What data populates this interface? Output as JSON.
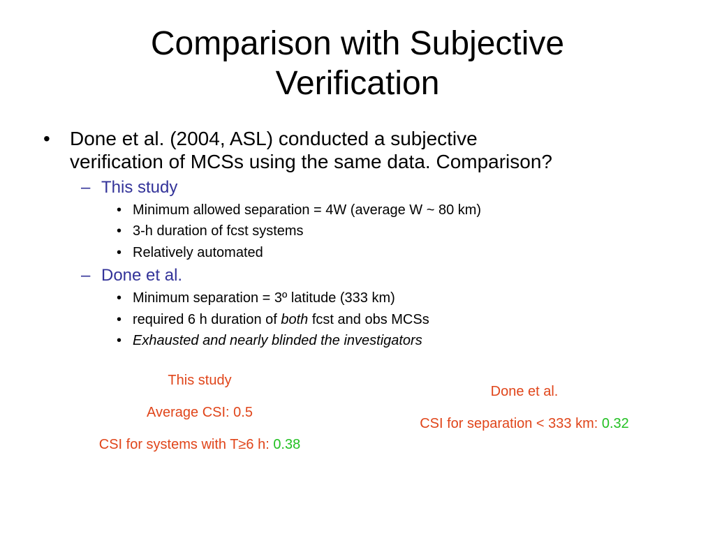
{
  "title": {
    "line1": "Comparison with Subjective",
    "line2": "Verification"
  },
  "main_bullet": {
    "marker": "•",
    "line1": "Done et al. (2004, ASL) conducted a subjective",
    "line2": "verification of MCSs using the same data. Comparison?"
  },
  "sections": [
    {
      "marker": "–",
      "heading": "This study",
      "items": [
        {
          "marker": "•",
          "text": "Minimum allowed separation = 4W (average W ~ 80 km)"
        },
        {
          "marker": "•",
          "text": "3-h duration of fcst systems"
        },
        {
          "marker": "•",
          "text": "Relatively automated"
        }
      ]
    },
    {
      "marker": "–",
      "heading": "Done et al.",
      "items": [
        {
          "marker": "•",
          "text": "Minimum separation = 3º latitude (333 km)"
        },
        {
          "marker": "•",
          "pre": "required 6 h duration of ",
          "em": "both",
          "post": " fcst and obs MCSs"
        },
        {
          "marker": "•",
          "text": "Exhausted and nearly blinded the investigators"
        }
      ]
    }
  ],
  "results": {
    "this_study": {
      "heading": "This study",
      "avg_label": "Average CSI: 0.5",
      "t6_label": "CSI for systems with T≥6 h: ",
      "t6_value": "0.38"
    },
    "done": {
      "heading": "Done et al.",
      "sep_label": "CSI for separation < 333 km: ",
      "sep_value": "0.32"
    }
  },
  "colors": {
    "subheading": "#333399",
    "result_text": "#e0451a",
    "result_value": "#22c022"
  }
}
